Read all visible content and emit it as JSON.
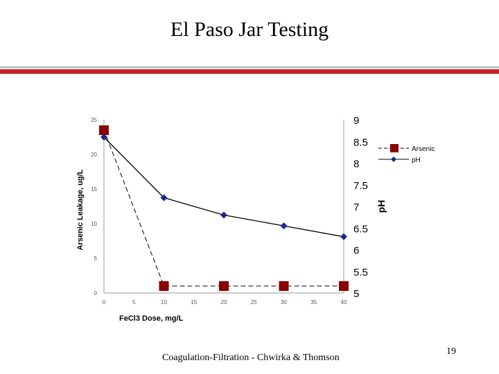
{
  "slide": {
    "title": "El Paso Jar Testing",
    "footer": "Coagulation-Filtration - Chwirka & Thomson",
    "page_number": "19"
  },
  "colors": {
    "divider_red": "#cc1f1f",
    "divider_gray": "#b0b0b0",
    "arsenic_marker": "#8b0000",
    "ph_marker": "#1a2a8a",
    "axis": "#999999"
  },
  "chart_data": {
    "type": "line",
    "xlabel": "FeCl3 Dose, mg/L",
    "ylabel": "Arsenic Leakage, ug/L",
    "y2label": "pH",
    "xlim": [
      0,
      40
    ],
    "ylim": [
      0,
      25
    ],
    "y2lim": [
      5,
      9
    ],
    "x_ticks": [
      "0",
      "5",
      "10",
      "15",
      "20",
      "25",
      "30",
      "35",
      "40"
    ],
    "y_ticks": [
      "0",
      "5",
      "10",
      "15",
      "20",
      "25"
    ],
    "y2_ticks": [
      "5",
      "5.5",
      "6",
      "6.5",
      "7",
      "7.5",
      "8",
      "8.5",
      "9"
    ],
    "grid": false,
    "legend_position": "top-right",
    "series": [
      {
        "name": "Arsenic",
        "axis": "left",
        "x": [
          0,
          10,
          20,
          30,
          40
        ],
        "values": [
          23.5,
          1.0,
          1.0,
          1.0,
          1.0
        ],
        "marker": "square",
        "line": "dashed"
      },
      {
        "name": "pH",
        "axis": "right",
        "x": [
          0,
          10,
          20,
          30,
          40
        ],
        "values": [
          8.6,
          7.2,
          6.8,
          6.55,
          6.3
        ],
        "marker": "diamond",
        "line": "solid"
      }
    ]
  }
}
